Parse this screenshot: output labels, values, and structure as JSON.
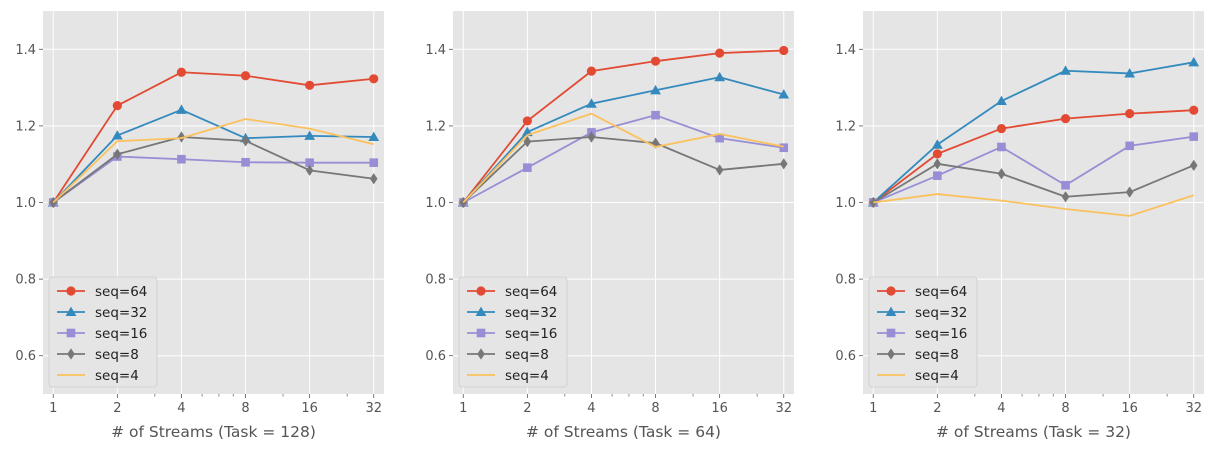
{
  "chart_data": [
    {
      "type": "line",
      "xlabel": "# of Streams (Task = 128)",
      "ylabel": "",
      "x_scale": "log2",
      "categories": [
        "1",
        "2",
        "4",
        "8",
        "16",
        "32"
      ],
      "x": [
        1,
        2,
        4,
        8,
        16,
        32
      ],
      "ylim": [
        0.5,
        1.5
      ],
      "yticks": [
        "0.6",
        "0.8",
        "1.0",
        "1.2",
        "1.4"
      ],
      "grid": true,
      "legend_position": "lower-left",
      "series": [
        {
          "name": "seq=64",
          "color": "#E24A33",
          "marker": "circle",
          "values": [
            1.0,
            1.253,
            1.34,
            1.331,
            1.306,
            1.323
          ]
        },
        {
          "name": "seq=32",
          "color": "#348ABD",
          "marker": "triangle",
          "values": [
            1.0,
            1.175,
            1.242,
            1.168,
            1.174,
            1.171
          ]
        },
        {
          "name": "seq=16",
          "color": "#988ED5",
          "marker": "square",
          "values": [
            1.0,
            1.12,
            1.113,
            1.105,
            1.104,
            1.104
          ]
        },
        {
          "name": "seq=8",
          "color": "#777777",
          "marker": "diamond",
          "values": [
            1.0,
            1.126,
            1.171,
            1.161,
            1.084,
            1.062
          ]
        },
        {
          "name": "seq=4",
          "color": "#FBC15E",
          "marker": "none",
          "values": [
            1.0,
            1.16,
            1.168,
            1.218,
            1.193,
            1.152
          ]
        }
      ]
    },
    {
      "type": "line",
      "xlabel": "# of Streams (Task = 64)",
      "ylabel": "",
      "x_scale": "log2",
      "categories": [
        "1",
        "2",
        "4",
        "8",
        "16",
        "32"
      ],
      "x": [
        1,
        2,
        4,
        8,
        16,
        32
      ],
      "ylim": [
        0.5,
        1.5
      ],
      "yticks": [
        "0.6",
        "0.8",
        "1.0",
        "1.2",
        "1.4"
      ],
      "grid": true,
      "legend_position": "lower-left",
      "series": [
        {
          "name": "seq=64",
          "color": "#E24A33",
          "marker": "circle",
          "values": [
            1.0,
            1.213,
            1.343,
            1.369,
            1.39,
            1.397
          ]
        },
        {
          "name": "seq=32",
          "color": "#348ABD",
          "marker": "triangle",
          "values": [
            1.0,
            1.184,
            1.258,
            1.293,
            1.327,
            1.282
          ]
        },
        {
          "name": "seq=16",
          "color": "#988ED5",
          "marker": "square",
          "values": [
            1.0,
            1.091,
            1.183,
            1.228,
            1.168,
            1.143
          ]
        },
        {
          "name": "seq=8",
          "color": "#777777",
          "marker": "diamond",
          "values": [
            1.0,
            1.159,
            1.171,
            1.155,
            1.085,
            1.101
          ]
        },
        {
          "name": "seq=4",
          "color": "#FBC15E",
          "marker": "none",
          "values": [
            1.0,
            1.176,
            1.232,
            1.145,
            1.179,
            1.146
          ]
        }
      ]
    },
    {
      "type": "line",
      "xlabel": "# of Streams (Task = 32)",
      "ylabel": "",
      "x_scale": "log2",
      "categories": [
        "1",
        "2",
        "4",
        "8",
        "16",
        "32"
      ],
      "x": [
        1,
        2,
        4,
        8,
        16,
        32
      ],
      "ylim": [
        0.5,
        1.5
      ],
      "yticks": [
        "0.6",
        "0.8",
        "1.0",
        "1.2",
        "1.4"
      ],
      "grid": true,
      "legend_position": "lower-left",
      "series": [
        {
          "name": "seq=64",
          "color": "#E24A33",
          "marker": "circle",
          "values": [
            1.0,
            1.127,
            1.193,
            1.219,
            1.232,
            1.241
          ]
        },
        {
          "name": "seq=32",
          "color": "#348ABD",
          "marker": "triangle",
          "values": [
            1.0,
            1.151,
            1.265,
            1.344,
            1.337,
            1.366
          ]
        },
        {
          "name": "seq=16",
          "color": "#988ED5",
          "marker": "square",
          "values": [
            1.0,
            1.07,
            1.145,
            1.045,
            1.148,
            1.172
          ]
        },
        {
          "name": "seq=8",
          "color": "#777777",
          "marker": "diamond",
          "values": [
            1.0,
            1.101,
            1.075,
            1.015,
            1.027,
            1.097
          ]
        },
        {
          "name": "seq=4",
          "color": "#FBC15E",
          "marker": "none",
          "values": [
            1.0,
            1.022,
            1.005,
            0.983,
            0.965,
            1.019
          ]
        }
      ]
    }
  ]
}
